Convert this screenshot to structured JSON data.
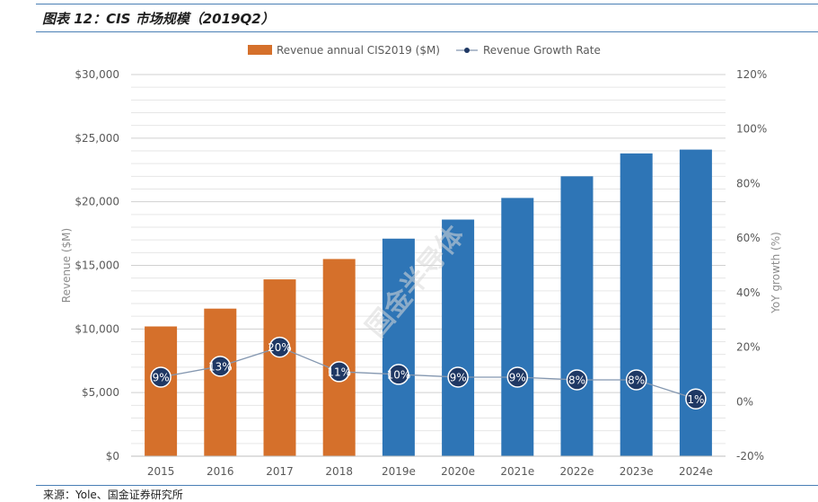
{
  "figure": {
    "title": "图表 12：CIS 市场规模（2019Q2）",
    "source": "来源：Yole、国金证券研究所",
    "watermark": "国金半导体"
  },
  "colors": {
    "actual_bar": "#d5702b",
    "forecast_bar": "#2e75b6",
    "growth_line": "#8497b0",
    "growth_marker": "#1f3864",
    "rule": "#4a7fb5"
  },
  "chart_data": {
    "type": "bar",
    "categories": [
      "2015",
      "2016",
      "2017",
      "2018",
      "2019e",
      "2020e",
      "2021e",
      "2022e",
      "2023e",
      "2024e"
    ],
    "series": [
      {
        "name": "Revenue annual CIS2019 ($M)",
        "type": "bar",
        "axis": "left",
        "values": [
          10200,
          11600,
          13900,
          15500,
          17100,
          18600,
          20300,
          22000,
          23800,
          24100
        ],
        "colors": [
          "#d5702b",
          "#d5702b",
          "#d5702b",
          "#d5702b",
          "#2e75b6",
          "#2e75b6",
          "#2e75b6",
          "#2e75b6",
          "#2e75b6",
          "#2e75b6"
        ]
      },
      {
        "name": "Revenue Growth Rate",
        "type": "line",
        "axis": "right",
        "values": [
          9,
          13,
          20,
          11,
          10,
          9,
          9,
          8,
          8,
          1
        ],
        "labels": [
          "9%",
          "13%",
          "20%",
          "11%",
          "10%",
          "9%",
          "9%",
          "8%",
          "8%",
          "1%"
        ]
      }
    ],
    "ylabel": "Revenue ($M)",
    "ylim": [
      0,
      30000
    ],
    "yticks": [
      0,
      5000,
      10000,
      15000,
      20000,
      25000,
      30000
    ],
    "ytick_labels": [
      "$0",
      "$5,000",
      "$10,000",
      "$15,000",
      "$20,000",
      "$25,000",
      "$30,000"
    ],
    "y2label": "YoY growth (%)",
    "y2lim": [
      -20,
      120
    ],
    "y2ticks": [
      -20,
      0,
      20,
      40,
      60,
      80,
      100,
      120
    ],
    "y2tick_labels": [
      "-20%",
      "0%",
      "20%",
      "40%",
      "60%",
      "80%",
      "100%",
      "120%"
    ],
    "grid": true,
    "legend_position": "top-center"
  }
}
